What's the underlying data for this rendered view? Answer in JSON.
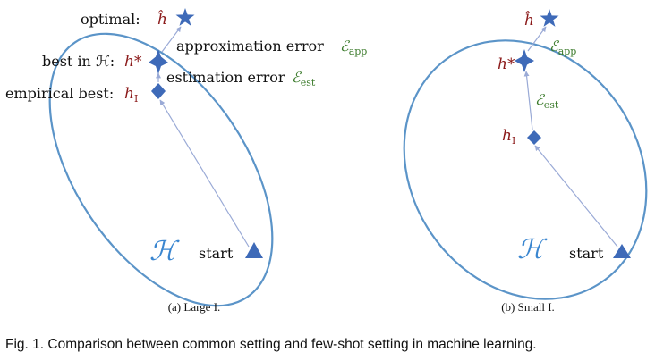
{
  "colors": {
    "ellipse": "#5b94c8",
    "marker": "#3e6ab8",
    "path": "#9aaad6",
    "math_red": "#8b1a1a",
    "math_green": "#3a7a2a",
    "hypothesis_blue": "#3a86d0"
  },
  "panel_a": {
    "label_optimal": "optimal:",
    "sym_optimal": "ĥ",
    "label_best": "best in ℋ:",
    "sym_best": "h*",
    "label_empirical": "empirical best:",
    "sym_empirical": "h",
    "sym_empirical_sub": "I",
    "approx_text": "approximation error",
    "approx_sym": "ℰ",
    "approx_sub": "app",
    "est_text": "estimation error",
    "est_sym": "ℰ",
    "est_sub": "est",
    "hypothesis": "ℋ",
    "start": "start",
    "caption": "(a) Large I."
  },
  "panel_b": {
    "sym_optimal": "ĥ",
    "sym_best": "h*",
    "sym_empirical": "h",
    "sym_empirical_sub": "I",
    "approx_sym": "ℰ",
    "approx_sub": "app",
    "est_sym": "ℰ",
    "est_sub": "est",
    "hypothesis": "ℋ",
    "start": "start",
    "caption": "(b) Small I."
  },
  "figure_caption": "Fig. 1.  Comparison between common setting and few-shot setting in machine learning."
}
